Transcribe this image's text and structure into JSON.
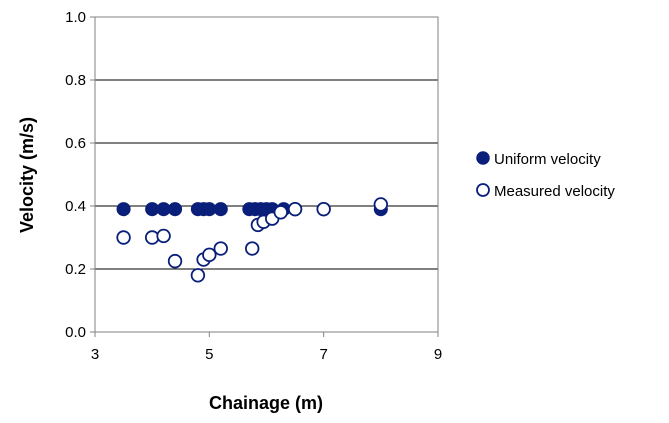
{
  "chart_data": {
    "type": "scatter",
    "title": "",
    "xlabel": "Chainage (m)",
    "ylabel": "Velocity (m/s)",
    "xlim": [
      3,
      9
    ],
    "ylim": [
      0.0,
      1.0
    ],
    "x_ticks": [
      3,
      5,
      7,
      9
    ],
    "x_tick_labels": [
      "3",
      "5",
      "7",
      "9"
    ],
    "y_ticks": [
      0.0,
      0.2,
      0.4,
      0.6,
      0.8,
      1.0
    ],
    "y_tick_labels": [
      "0.0",
      "0.2",
      "0.4",
      "0.6",
      "0.8",
      "1.0"
    ],
    "grid": "horizontal",
    "legend_position": "right",
    "series": [
      {
        "name": "Uniform velocity",
        "marker": "filled-circle",
        "color": "#0a1f7a",
        "x": [
          3.5,
          4.0,
          4.2,
          4.4,
          4.8,
          4.9,
          5.0,
          5.2,
          5.7,
          5.8,
          5.9,
          6.0,
          6.1,
          6.3,
          6.5,
          7.0,
          8.0
        ],
        "y": [
          0.39,
          0.39,
          0.39,
          0.39,
          0.39,
          0.39,
          0.39,
          0.39,
          0.39,
          0.39,
          0.39,
          0.39,
          0.39,
          0.39,
          0.39,
          0.39,
          0.39
        ]
      },
      {
        "name": "Measured velocity",
        "marker": "open-circle",
        "color": "#0a1f7a",
        "x": [
          3.5,
          4.0,
          4.2,
          4.4,
          4.8,
          4.9,
          5.0,
          5.2,
          5.75,
          5.85,
          5.95,
          6.1,
          6.25,
          6.5,
          7.0,
          8.0
        ],
        "y": [
          0.3,
          0.3,
          0.305,
          0.225,
          0.18,
          0.23,
          0.245,
          0.265,
          0.265,
          0.34,
          0.35,
          0.36,
          0.38,
          0.39,
          0.39,
          0.405
        ]
      }
    ]
  }
}
